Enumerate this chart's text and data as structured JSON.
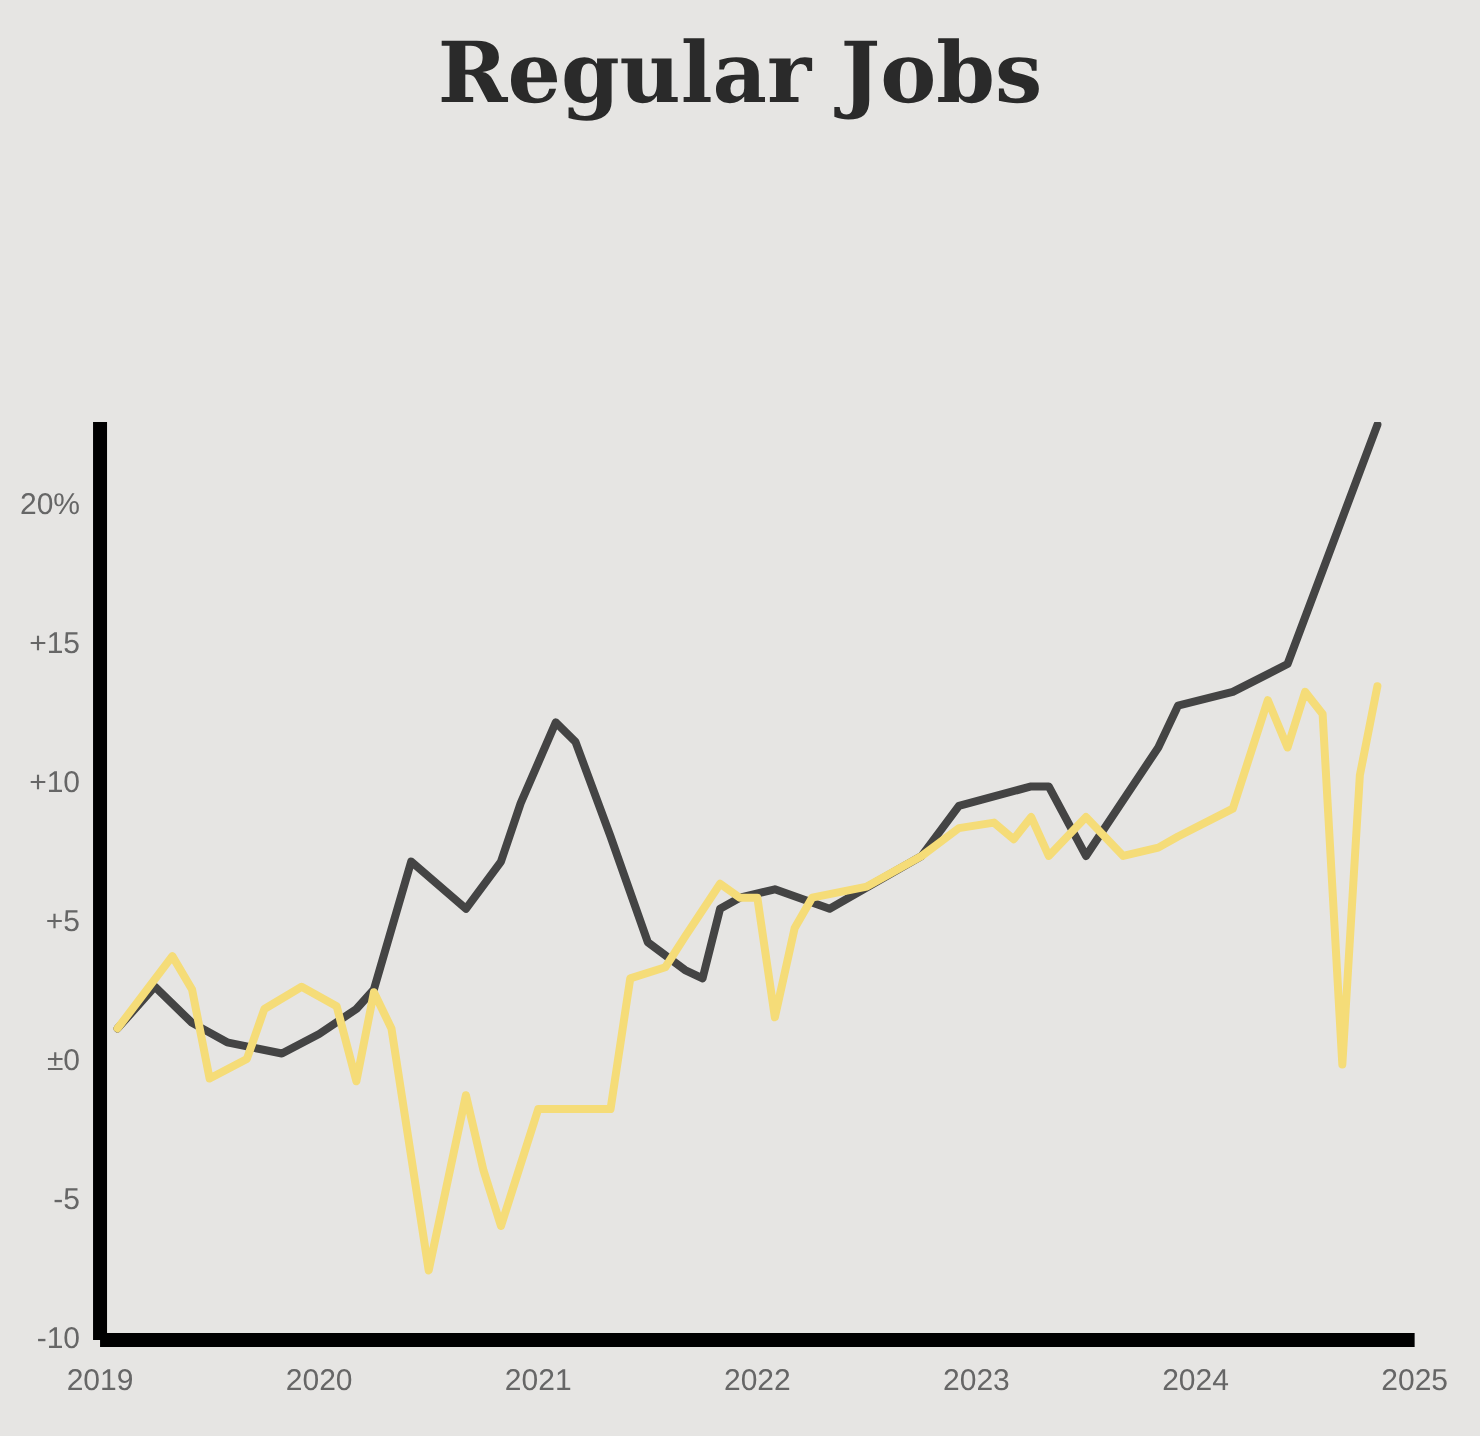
{
  "chart_data": {
    "type": "line",
    "title": "Regular Jobs",
    "xlim": [
      2019,
      2025
    ],
    "xticks": [
      2019,
      2020,
      2021,
      2022,
      2023,
      2024,
      2025
    ],
    "ylim": [
      -10,
      23
    ],
    "yticks": [
      {
        "value": 20,
        "label": "20%"
      },
      {
        "value": 15,
        "label": "+15"
      },
      {
        "value": 10,
        "label": "+10"
      },
      {
        "value": 5,
        "label": "+5"
      },
      {
        "value": 0,
        "label": "±0"
      },
      {
        "value": -5,
        "label": "-5"
      },
      {
        "value": -10,
        "label": "-10"
      }
    ],
    "grid": false,
    "legend": false,
    "marker": "none",
    "line_style": "solid",
    "series": [
      {
        "color": "#444444",
        "x": [
          2019.08,
          2019.25,
          2019.42,
          2019.58,
          2019.83,
          2020.0,
          2020.17,
          2020.25,
          2020.42,
          2020.67,
          2020.83,
          2020.92,
          2021.08,
          2021.17,
          2021.33,
          2021.5,
          2021.67,
          2021.75,
          2021.83,
          2021.92,
          2022.08,
          2022.33,
          2022.75,
          2022.92,
          2023.25,
          2023.33,
          2023.5,
          2023.83,
          2023.92,
          2024.17,
          2024.42,
          2024.83
        ],
        "values": [
          1.2,
          2.7,
          1.4,
          0.7,
          0.3,
          1.0,
          1.9,
          2.6,
          7.2,
          5.5,
          7.2,
          9.3,
          12.2,
          11.5,
          8.1,
          4.3,
          3.3,
          3.0,
          5.5,
          5.9,
          6.2,
          5.5,
          7.4,
          9.2,
          9.9,
          9.9,
          7.4,
          11.3,
          12.8,
          13.3,
          14.3,
          22.9
        ]
      },
      {
        "color": "#f5dc78",
        "x": [
          2019.08,
          2019.33,
          2019.42,
          2019.5,
          2019.67,
          2019.75,
          2019.92,
          2020.08,
          2020.17,
          2020.25,
          2020.33,
          2020.5,
          2020.67,
          2020.75,
          2020.83,
          2021.0,
          2021.17,
          2021.33,
          2021.42,
          2021.58,
          2021.67,
          2021.83,
          2021.92,
          2022.0,
          2022.08,
          2022.17,
          2022.25,
          2022.5,
          2022.75,
          2022.92,
          2023.08,
          2023.17,
          2023.25,
          2023.33,
          2023.5,
          2023.67,
          2023.83,
          2023.92,
          2024.17,
          2024.33,
          2024.42,
          2024.5,
          2024.58,
          2024.67,
          2024.75,
          2024.83
        ],
        "values": [
          1.2,
          3.8,
          2.6,
          -0.6,
          0.1,
          1.9,
          2.7,
          2.0,
          -0.7,
          2.5,
          1.2,
          -7.5,
          -1.2,
          -3.9,
          -5.9,
          -1.7,
          -1.7,
          -1.7,
          3.0,
          3.4,
          4.5,
          6.4,
          5.9,
          5.9,
          1.6,
          4.8,
          5.9,
          6.3,
          7.4,
          8.4,
          8.6,
          8.0,
          8.8,
          7.4,
          8.8,
          7.4,
          7.7,
          8.1,
          9.1,
          13.0,
          11.3,
          13.3,
          12.5,
          -0.1,
          10.3,
          13.5
        ]
      }
    ]
  }
}
